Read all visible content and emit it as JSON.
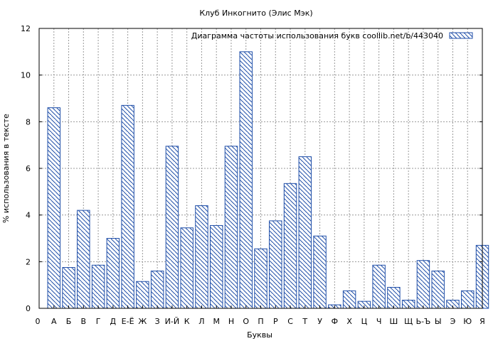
{
  "chart_data": {
    "type": "bar",
    "title": "Клуб Инкогнито (Элис Мэк)",
    "xlabel": "Буквы",
    "ylabel": "% использования в тексте",
    "legend": {
      "label": "Диаграмма частоты использования букв  coollib.net/b/443040",
      "placement": "top-right"
    },
    "ylim": [
      0,
      12
    ],
    "yticks": [
      "0",
      "2",
      "4",
      "6",
      "8",
      "10",
      "12"
    ],
    "grid": true,
    "categories": [
      "0",
      "А",
      "Б",
      "В",
      "Г",
      "Д",
      "Е-Ё",
      "Ж",
      "З",
      "И-Й",
      "К",
      "Л",
      "М",
      "Н",
      "О",
      "П",
      "Р",
      "С",
      "Т",
      "У",
      "Ф",
      "Х",
      "Ц",
      "Ч",
      "Ш",
      "Щ",
      "Ь-Ъ",
      "Ы",
      "Э",
      "Ю",
      "Я"
    ],
    "values": [
      null,
      8.6,
      1.75,
      4.2,
      1.85,
      3.0,
      8.7,
      1.15,
      1.6,
      6.95,
      3.45,
      4.4,
      3.55,
      6.95,
      11.0,
      2.55,
      3.75,
      5.35,
      6.5,
      3.1,
      0.15,
      0.75,
      0.3,
      1.85,
      0.9,
      0.35,
      2.05,
      1.6,
      0.35,
      0.75,
      2.7
    ],
    "colors": {
      "bar_stroke": "#1f4ea8",
      "hatch": "#1f4ea8",
      "grid": "#999999",
      "axis": "#000000",
      "background": "#ffffff"
    }
  }
}
